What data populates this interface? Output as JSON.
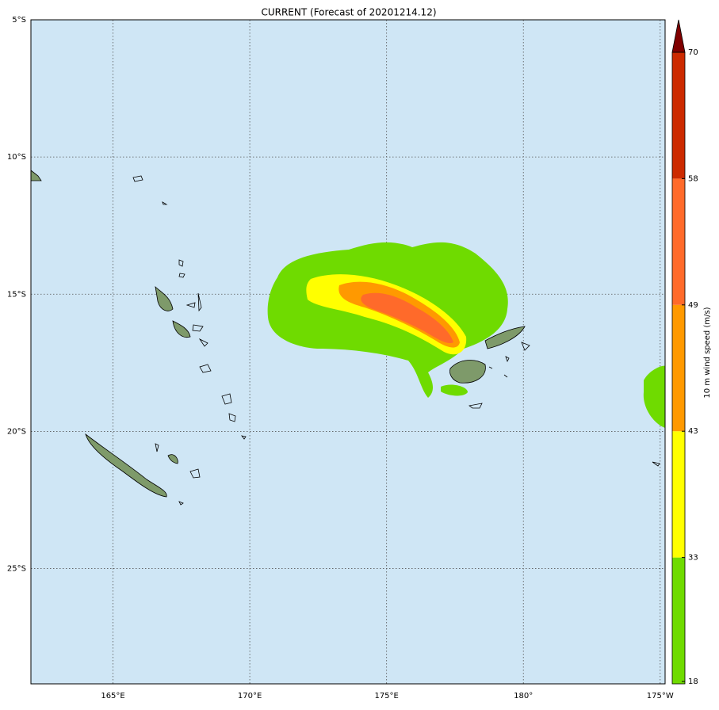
{
  "title": "CURRENT (Forecast of 20201214.12)",
  "map": {
    "lon_range": [
      162.0,
      185.18
    ],
    "lat_range": [
      -5,
      -29.2
    ],
    "lat_ticks": [
      {
        "value": -5,
        "label": "5°S"
      },
      {
        "value": -10,
        "label": "10°S"
      },
      {
        "value": -15,
        "label": "15°S"
      },
      {
        "value": -20,
        "label": "20°S"
      },
      {
        "value": -25,
        "label": "25°S"
      }
    ],
    "lon_ticks": [
      {
        "value": 165,
        "label": "165°E"
      },
      {
        "value": 170,
        "label": "170°E"
      },
      {
        "value": 175,
        "label": "175°E"
      },
      {
        "value": 180,
        "label": "180°"
      },
      {
        "value": 185,
        "label": "175°W"
      }
    ]
  },
  "colorbar": {
    "label": "10 m wind speed (m/s)",
    "ticks": [
      18,
      33,
      43,
      49,
      58,
      70
    ],
    "colors": [
      "#6fdb00",
      "#ffff00",
      "#ff9900",
      "#ff6a2a",
      "#cc2a00"
    ],
    "extend_color": "#800000"
  }
}
